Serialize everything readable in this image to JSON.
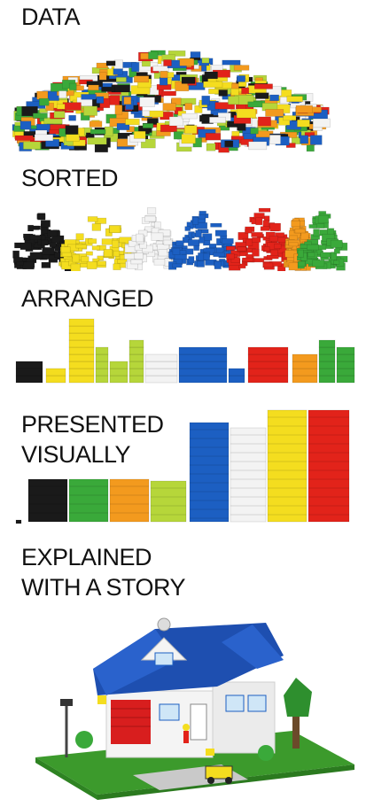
{
  "stages": [
    {
      "label": "DATA"
    },
    {
      "label": "SORTED"
    },
    {
      "label": "ARRANGED"
    },
    {
      "label": "PRESENTED VISUALLY",
      "lines": [
        "PRESENTED",
        "VISUALLY"
      ]
    },
    {
      "label": "EXPLAINED WITH A STORY",
      "lines": [
        "EXPLAINED",
        "WITH A STORY"
      ]
    }
  ],
  "palette": {
    "black": "#1a1a1a",
    "yellow": "#f4dd1f",
    "lime": "#b6d63a",
    "white": "#f3f3f3",
    "blue": "#1c5fc2",
    "red": "#e2231a",
    "orange": "#f39a1e",
    "green": "#3aa93a"
  }
}
